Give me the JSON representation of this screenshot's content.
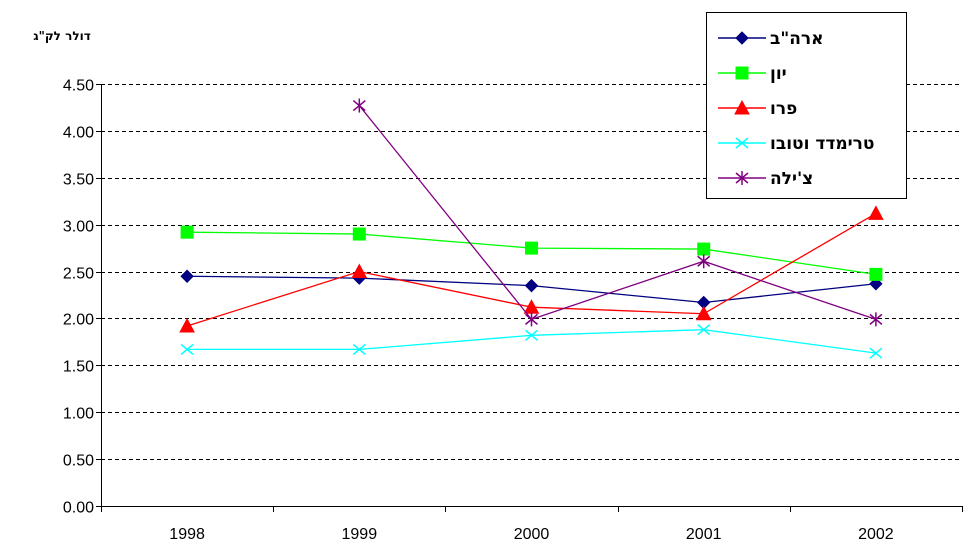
{
  "chart_data": {
    "type": "line",
    "title": "",
    "xlabel": "",
    "ylabel": "דולר לק\"ג",
    "categories": [
      "1998",
      "1999",
      "2000",
      "2001",
      "2002"
    ],
    "ylim": [
      0,
      4.5
    ],
    "yticks": [
      "0.00",
      "0.50",
      "1.00",
      "1.50",
      "2.00",
      "2.50",
      "3.00",
      "3.50",
      "4.00",
      "4.50"
    ],
    "grid": "horizontal dashed",
    "legend_position": "top-right",
    "series": [
      {
        "name": "ארה\"ב",
        "color": "#000080",
        "marker": "diamond",
        "values": [
          2.45,
          2.43,
          2.35,
          2.17,
          2.37
        ]
      },
      {
        "name": "יון",
        "color": "#00ff00",
        "marker": "square",
        "values": [
          2.92,
          2.9,
          2.75,
          2.74,
          2.47
        ]
      },
      {
        "name": "פרו",
        "color": "#ff0000",
        "marker": "triangle",
        "values": [
          1.92,
          2.5,
          2.12,
          2.05,
          3.12
        ]
      },
      {
        "name": "טרימדד וטובו",
        "color": "#00ffff",
        "marker": "x",
        "values": [
          1.67,
          1.67,
          1.82,
          1.88,
          1.63
        ]
      },
      {
        "name": "צ'ילה",
        "color": "#800080",
        "marker": "star",
        "values": [
          null,
          4.27,
          1.99,
          2.61,
          1.99
        ]
      }
    ]
  }
}
